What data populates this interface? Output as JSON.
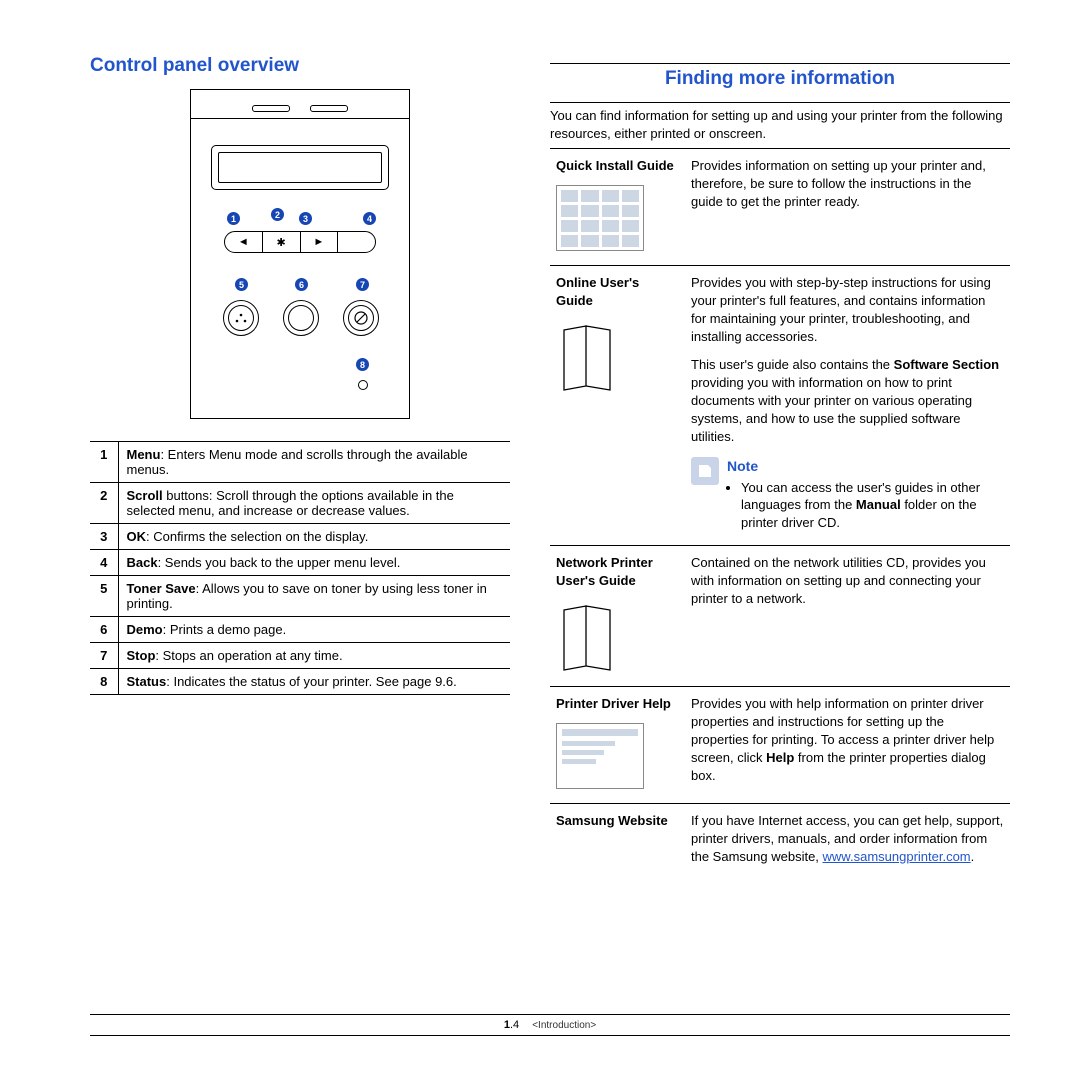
{
  "colors": {
    "accent": "#2255cc",
    "callout_bg": "#1646b3",
    "thumb_fill": "#cdd7e4",
    "note_bg": "#c9d4e8"
  },
  "left": {
    "heading": "Control panel overview",
    "callouts": [
      "1",
      "2",
      "3",
      "4",
      "5",
      "6",
      "7",
      "8"
    ],
    "rows": [
      {
        "n": "1",
        "term": "Menu",
        "text": ": Enters Menu mode and scrolls through the available menus."
      },
      {
        "n": "2",
        "term": "Scroll",
        "text": " buttons: Scroll through the options available in the selected menu, and increase or decrease values."
      },
      {
        "n": "3",
        "term": "OK",
        "text": ": Confirms the selection on the display."
      },
      {
        "n": "4",
        "term": "Back",
        "text": ": Sends you back to the upper menu level."
      },
      {
        "n": "5",
        "term": "Toner Save",
        "text": ": Allows you to save on toner by using less toner in printing."
      },
      {
        "n": "6",
        "term": "Demo",
        "text": ": Prints a demo page."
      },
      {
        "n": "7",
        "term": "Stop",
        "text": ": Stops an operation at any time."
      },
      {
        "n": "8",
        "term": "Status",
        "text": ": Indicates the status of your printer. See page 9.6."
      }
    ]
  },
  "right": {
    "heading": "Finding more information",
    "intro": "You can find information for setting up and using your printer from the following resources, either printed or onscreen.",
    "items": {
      "quick": {
        "label": "Quick Install Guide",
        "text": "Provides information on setting up your printer and, therefore, be sure to follow the instructions in the guide to get the printer ready."
      },
      "online": {
        "label": "Online User's Guide",
        "p1": "Provides you with step-by-step instructions for using your printer's full features, and contains information for maintaining your printer, troubleshooting, and installing accessories.",
        "p2a": "This user's guide also contains the ",
        "p2b": "Software Section",
        "p2c": " providing you with information on how to print documents with your printer on various operating systems, and how to use the supplied software utilities.",
        "note_title": "Note",
        "note_a": "You can access the user's guides in other languages from the ",
        "note_b": "Manual",
        "note_c": " folder on the printer driver CD."
      },
      "network": {
        "label": "Network Printer User's Guide",
        "text": "Contained on the network utilities CD, provides you with information on setting up and connecting your printer to a network."
      },
      "driver": {
        "label": "Printer Driver Help",
        "a": "Provides you with help information on printer driver properties and instructions for setting up the properties for printing. To access a printer driver help screen, click ",
        "b": "Help",
        "c": " from the printer properties dialog box."
      },
      "website": {
        "label": "Samsung Website",
        "a": "If you have Internet access, you can get help, support, printer drivers, manuals, and order information from the Samsung website, ",
        "link": "www.samsungprinter.com",
        "b": "."
      }
    }
  },
  "footer": {
    "page_prefix": "1",
    "page_suffix": ".4",
    "chapter": "<Introduction>"
  }
}
